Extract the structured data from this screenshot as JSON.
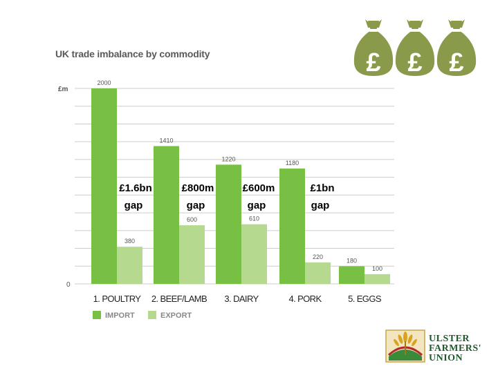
{
  "slide": {
    "bag_icons": [
      "money-bag-icon",
      "money-bag-icon",
      "money-bag-icon"
    ],
    "bag_symbol": "£",
    "logo": {
      "lines": [
        "ULSTER",
        "FARMERS'",
        "UNION"
      ],
      "icon": "wheat-sheaf-icon"
    }
  },
  "colors": {
    "import": "#77c043",
    "export": "#b5d98f",
    "grid": "#cccccc",
    "bag": "#8a9a4b"
  },
  "chart_data": {
    "type": "bar",
    "title": "UK trade imbalance by commodity",
    "ylabel": "£m",
    "y_tick_labels": [
      "0"
    ],
    "ylim": [
      0,
      2000
    ],
    "categories": [
      "1. POULTRY",
      "2. BEEF/LAMB",
      "3. DAIRY",
      "4. PORK",
      "5. EGGS"
    ],
    "series": [
      {
        "name": "IMPORT",
        "values": [
          2000,
          1410,
          1220,
          1180,
          180
        ]
      },
      {
        "name": "EXPORT",
        "values": [
          380,
          600,
          610,
          220,
          100
        ]
      }
    ],
    "annotations": [
      {
        "line1": "£1.6bn",
        "line2": "gap"
      },
      {
        "line1": "£800m",
        "line2": "gap"
      },
      {
        "line1": "£600m",
        "line2": "gap"
      },
      {
        "line1": "£1bn",
        "line2": "gap"
      }
    ],
    "legend": [
      "IMPORT",
      "EXPORT"
    ],
    "legend_position": "bottom-left",
    "grid": true
  }
}
